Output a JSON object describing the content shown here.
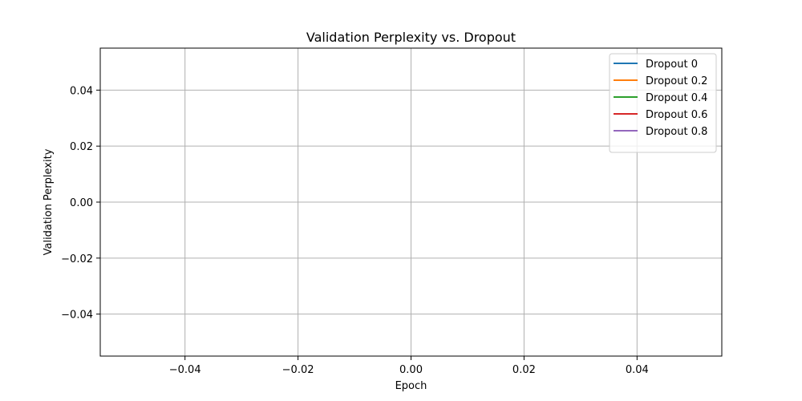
{
  "chart_data": {
    "type": "line",
    "title": "Validation Perplexity vs. Dropout",
    "xlabel": "Epoch",
    "ylabel": "Validation Perplexity",
    "xlim": [
      -0.055,
      0.055
    ],
    "ylim": [
      -0.055,
      0.055
    ],
    "xticks": [
      -0.04,
      -0.02,
      0.0,
      0.02,
      0.04
    ],
    "yticks": [
      -0.04,
      -0.02,
      0.0,
      0.02,
      0.04
    ],
    "xtick_labels": [
      "−0.04",
      "−0.02",
      "0.00",
      "0.02",
      "0.04"
    ],
    "ytick_labels": [
      "−0.04",
      "−0.02",
      "0.00",
      "0.02",
      "0.04"
    ],
    "grid": true,
    "legend_position": "top-right",
    "series": [
      {
        "name": "Dropout 0",
        "color": "#1f77b4",
        "x": [],
        "y": []
      },
      {
        "name": "Dropout 0.2",
        "color": "#ff7f0e",
        "x": [],
        "y": []
      },
      {
        "name": "Dropout 0.4",
        "color": "#2ca02c",
        "x": [],
        "y": []
      },
      {
        "name": "Dropout 0.6",
        "color": "#d62728",
        "x": [],
        "y": []
      },
      {
        "name": "Dropout 0.8",
        "color": "#9467bd",
        "x": [],
        "y": []
      }
    ]
  }
}
